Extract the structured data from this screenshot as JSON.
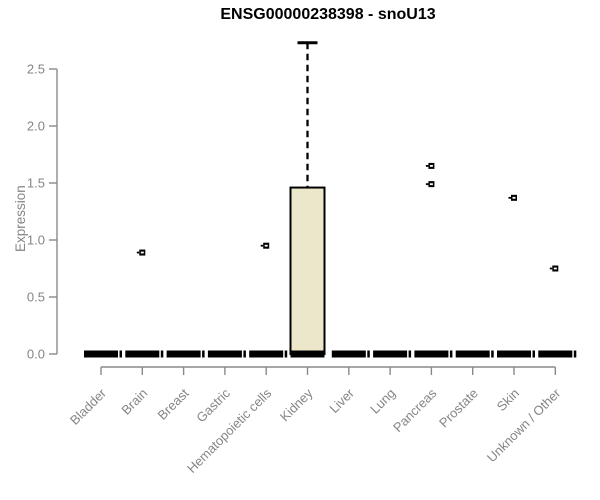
{
  "chart_data": {
    "type": "boxplot",
    "title": "ENSG00000238398 - snoU13",
    "ylabel": "Expression",
    "xlabel": "",
    "ylim": [
      0,
      2.75
    ],
    "yticks": [
      "0.0",
      "0.5",
      "1.0",
      "1.5",
      "2.0",
      "2.5"
    ],
    "grid": false,
    "legend": false,
    "categories": [
      "Bladder",
      "Brain",
      "Breast",
      "Gastric",
      "Hematopoietic cells",
      "Kidney",
      "Liver",
      "Lung",
      "Pancreas",
      "Prostate",
      "Skin",
      "Unknown / Other"
    ],
    "series": [
      {
        "category": "Bladder",
        "q1": 0,
        "median": 0,
        "q3": 0,
        "whisker_low": 0,
        "whisker_high": 0,
        "outliers": []
      },
      {
        "category": "Brain",
        "q1": 0,
        "median": 0,
        "q3": 0,
        "whisker_low": 0,
        "whisker_high": 0,
        "outliers": [
          0.89
        ]
      },
      {
        "category": "Breast",
        "q1": 0,
        "median": 0,
        "q3": 0,
        "whisker_low": 0,
        "whisker_high": 0,
        "outliers": []
      },
      {
        "category": "Gastric",
        "q1": 0,
        "median": 0,
        "q3": 0,
        "whisker_low": 0,
        "whisker_high": 0,
        "outliers": []
      },
      {
        "category": "Hematopoietic cells",
        "q1": 0,
        "median": 0,
        "q3": 0,
        "whisker_low": 0,
        "whisker_high": 0,
        "outliers": [
          0.95
        ]
      },
      {
        "category": "Kidney",
        "q1": 0,
        "median": 0,
        "q3": 1.46,
        "whisker_low": 0,
        "whisker_high": 2.73,
        "outliers": []
      },
      {
        "category": "Liver",
        "q1": 0,
        "median": 0,
        "q3": 0,
        "whisker_low": 0,
        "whisker_high": 0,
        "outliers": []
      },
      {
        "category": "Lung",
        "q1": 0,
        "median": 0,
        "q3": 0,
        "whisker_low": 0,
        "whisker_high": 0,
        "outliers": []
      },
      {
        "category": "Pancreas",
        "q1": 0,
        "median": 0,
        "q3": 0,
        "whisker_low": 0,
        "whisker_high": 0,
        "outliers": [
          1.49,
          1.65
        ]
      },
      {
        "category": "Prostate",
        "q1": 0,
        "median": 0,
        "q3": 0,
        "whisker_low": 0,
        "whisker_high": 0,
        "outliers": []
      },
      {
        "category": "Skin",
        "q1": 0,
        "median": 0,
        "q3": 0,
        "whisker_low": 0,
        "whisker_high": 0,
        "outliers": [
          1.37
        ]
      },
      {
        "category": "Unknown / Other",
        "q1": 0,
        "median": 0,
        "q3": 0,
        "whisker_low": 0,
        "whisker_high": 0,
        "outliers": [
          0.75
        ]
      }
    ]
  },
  "colors": {
    "title": "#000000",
    "axis": "#8a8a8a",
    "tick_label": "#858585",
    "box_fill": "#ece7ca",
    "box_border": "#000000",
    "median": "#000000",
    "whisker": "#000000",
    "outlier": "#000000",
    "background": "#ffffff"
  }
}
